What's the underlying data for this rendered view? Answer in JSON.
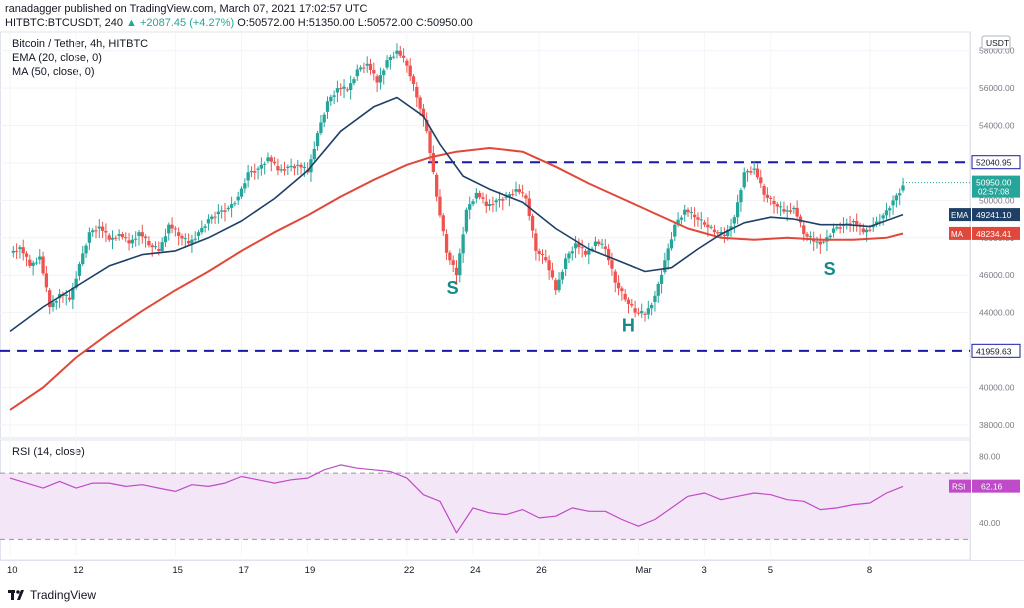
{
  "header": {
    "author": "ranadagger",
    "published": "published on TradingView.com, March 07, 2021 17:02:57 UTC",
    "symbol_line": "HITBTC:BTCUSDT, 240",
    "change": "▲ +2087.45 (+4.27%)",
    "ohlc": "O:50572.00 H:51350.00 L:50572.00 C:50950.00"
  },
  "legend": {
    "title": "Bitcoin / Tether, 4h, HITBTC",
    "ema": "EMA (20, close, 0)",
    "ma": "MA (50, close, 0)",
    "rsi": "RSI (14, close)"
  },
  "footer": {
    "brand": "TradingView"
  },
  "colors": {
    "up": "#26a69a",
    "down": "#ef5350",
    "ema": "#1e3f66",
    "ma": "#e0483c",
    "rsi": "#c04bc8",
    "support": "#1a1aa6",
    "pattern": "#138a8a"
  },
  "chart_data": {
    "type": "candlestick",
    "currency_badge": "USDT",
    "price_axis": {
      "min": 37000,
      "max": 59000,
      "ticks": [
        "38000.00",
        "40000.00",
        "42000.00",
        "44000.00",
        "46000.00",
        "48000.00",
        "50000.00",
        "52000.00",
        "54000.00",
        "56000.00",
        "58000.00"
      ]
    },
    "time_axis": {
      "ticks": [
        "10",
        "12",
        "15",
        "17",
        "19",
        "22",
        "24",
        "26",
        "Mar",
        "3",
        "5",
        "8"
      ]
    },
    "last_price": "50950.00",
    "countdown": "02:57:08",
    "ema20_value": "49241.10",
    "ma50_value": "48234.41",
    "ema_label": "EMA",
    "ma_label": "MA",
    "horizontal_levels": [
      {
        "value": 52040.95,
        "label": "52040.95"
      },
      {
        "value": 41959.63,
        "label": "41959.63"
      }
    ],
    "pattern_labels": [
      {
        "text": "S",
        "day": 23.2,
        "price": 45000
      },
      {
        "text": "H",
        "day": 28.5,
        "price": 43000
      },
      {
        "text": "S",
        "day": 34.6,
        "price": 46000
      }
    ],
    "close_path": [
      [
        10.0,
        47200
      ],
      [
        10.3,
        47500
      ],
      [
        10.6,
        46500
      ],
      [
        10.9,
        47000
      ],
      [
        11.2,
        44300
      ],
      [
        11.5,
        45000
      ],
      [
        11.8,
        44700
      ],
      [
        12.1,
        46600
      ],
      [
        12.4,
        48300
      ],
      [
        12.7,
        48600
      ],
      [
        13.0,
        47900
      ],
      [
        13.3,
        48200
      ],
      [
        13.6,
        47700
      ],
      [
        13.9,
        48300
      ],
      [
        14.2,
        47600
      ],
      [
        14.5,
        47300
      ],
      [
        14.8,
        48700
      ],
      [
        15.1,
        48100
      ],
      [
        15.4,
        47700
      ],
      [
        15.7,
        48300
      ],
      [
        16.0,
        49000
      ],
      [
        16.3,
        49400
      ],
      [
        16.6,
        49600
      ],
      [
        16.9,
        50200
      ],
      [
        17.2,
        51500
      ],
      [
        17.5,
        51700
      ],
      [
        17.8,
        52300
      ],
      [
        18.1,
        51600
      ],
      [
        18.4,
        51800
      ],
      [
        18.7,
        51900
      ],
      [
        19.0,
        51500
      ],
      [
        19.3,
        53600
      ],
      [
        19.6,
        55300
      ],
      [
        19.9,
        56000
      ],
      [
        20.2,
        55900
      ],
      [
        20.5,
        57000
      ],
      [
        20.8,
        57300
      ],
      [
        21.1,
        56300
      ],
      [
        21.4,
        57500
      ],
      [
        21.7,
        58000
      ],
      [
        22.0,
        57200
      ],
      [
        22.3,
        55500
      ],
      [
        22.6,
        53700
      ],
      [
        22.9,
        50200
      ],
      [
        23.2,
        47200
      ],
      [
        23.5,
        46000
      ],
      [
        23.8,
        49500
      ],
      [
        24.1,
        50400
      ],
      [
        24.4,
        49700
      ],
      [
        24.7,
        50000
      ],
      [
        25.0,
        50200
      ],
      [
        25.3,
        50600
      ],
      [
        25.6,
        50100
      ],
      [
        25.9,
        47300
      ],
      [
        26.2,
        46800
      ],
      [
        26.5,
        45200
      ],
      [
        26.8,
        46900
      ],
      [
        27.1,
        47700
      ],
      [
        27.4,
        47100
      ],
      [
        27.7,
        47800
      ],
      [
        28.0,
        47400
      ],
      [
        28.3,
        45600
      ],
      [
        28.6,
        44700
      ],
      [
        28.9,
        44000
      ],
      [
        29.2,
        43900
      ],
      [
        29.5,
        44900
      ],
      [
        29.8,
        46800
      ],
      [
        30.1,
        48700
      ],
      [
        30.4,
        49500
      ],
      [
        30.7,
        49100
      ],
      [
        31.0,
        48700
      ],
      [
        31.3,
        48300
      ],
      [
        31.6,
        48100
      ],
      [
        31.9,
        49100
      ],
      [
        32.2,
        51500
      ],
      [
        32.5,
        51700
      ],
      [
        32.8,
        50300
      ],
      [
        33.1,
        49800
      ],
      [
        33.4,
        49400
      ],
      [
        33.7,
        49600
      ],
      [
        34.0,
        48200
      ],
      [
        34.3,
        47800
      ],
      [
        34.6,
        47800
      ],
      [
        34.9,
        48500
      ],
      [
        35.2,
        48700
      ],
      [
        35.5,
        48900
      ],
      [
        35.8,
        48300
      ],
      [
        36.1,
        48700
      ],
      [
        36.4,
        49200
      ],
      [
        36.7,
        50000
      ],
      [
        37.0,
        50800
      ]
    ],
    "ema20_path": [
      [
        10.0,
        43000
      ],
      [
        11.0,
        44300
      ],
      [
        12.0,
        45400
      ],
      [
        13.0,
        46500
      ],
      [
        14.0,
        47100
      ],
      [
        15.0,
        47300
      ],
      [
        16.0,
        48000
      ],
      [
        17.0,
        48900
      ],
      [
        18.0,
        50100
      ],
      [
        19.0,
        51600
      ],
      [
        20.0,
        53700
      ],
      [
        21.0,
        55000
      ],
      [
        21.7,
        55500
      ],
      [
        22.5,
        54500
      ],
      [
        23.0,
        53000
      ],
      [
        23.7,
        51300
      ],
      [
        24.5,
        50600
      ],
      [
        25.5,
        49900
      ],
      [
        26.5,
        48500
      ],
      [
        27.5,
        47400
      ],
      [
        28.5,
        46700
      ],
      [
        29.2,
        46200
      ],
      [
        30.0,
        46400
      ],
      [
        30.8,
        47400
      ],
      [
        31.5,
        48200
      ],
      [
        32.2,
        48800
      ],
      [
        33.0,
        49100
      ],
      [
        33.7,
        49000
      ],
      [
        34.5,
        48700
      ],
      [
        35.3,
        48700
      ],
      [
        36.0,
        48600
      ],
      [
        37.0,
        49240
      ]
    ],
    "ma50_path": [
      [
        10.0,
        38800
      ],
      [
        11.0,
        40000
      ],
      [
        12.0,
        41600
      ],
      [
        13.0,
        42900
      ],
      [
        14.0,
        44100
      ],
      [
        15.0,
        45200
      ],
      [
        16.0,
        46200
      ],
      [
        17.0,
        47300
      ],
      [
        18.0,
        48300
      ],
      [
        19.0,
        49200
      ],
      [
        20.0,
        50200
      ],
      [
        21.0,
        51100
      ],
      [
        22.0,
        51900
      ],
      [
        22.7,
        52300
      ],
      [
        23.5,
        52600
      ],
      [
        24.5,
        52800
      ],
      [
        25.5,
        52600
      ],
      [
        26.5,
        51800
      ],
      [
        27.5,
        50900
      ],
      [
        28.5,
        50100
      ],
      [
        29.5,
        49300
      ],
      [
        30.5,
        48500
      ],
      [
        31.5,
        48000
      ],
      [
        32.5,
        47900
      ],
      [
        33.5,
        48000
      ],
      [
        34.5,
        47900
      ],
      [
        35.5,
        47900
      ],
      [
        36.5,
        48000
      ],
      [
        37.0,
        48230
      ]
    ],
    "rsi": {
      "axis_ticks": [
        "80.00",
        "40.00"
      ],
      "upper_band": 70,
      "lower_band": 30,
      "value_label": "RSI",
      "value": "62.16",
      "path": [
        [
          10.0,
          67
        ],
        [
          10.5,
          64
        ],
        [
          11.0,
          61
        ],
        [
          11.5,
          65
        ],
        [
          12.0,
          61
        ],
        [
          12.5,
          64
        ],
        [
          13.0,
          64
        ],
        [
          13.5,
          62
        ],
        [
          14.0,
          63
        ],
        [
          14.5,
          61
        ],
        [
          15.0,
          59
        ],
        [
          15.5,
          63
        ],
        [
          16.0,
          62
        ],
        [
          16.5,
          64
        ],
        [
          17.0,
          68
        ],
        [
          17.5,
          66
        ],
        [
          18.0,
          64
        ],
        [
          18.5,
          66
        ],
        [
          19.0,
          67
        ],
        [
          19.5,
          72
        ],
        [
          20.0,
          75
        ],
        [
          20.5,
          73
        ],
        [
          21.0,
          72
        ],
        [
          21.5,
          71
        ],
        [
          22.0,
          67
        ],
        [
          22.5,
          57
        ],
        [
          23.0,
          53
        ],
        [
          23.5,
          34
        ],
        [
          24.0,
          49
        ],
        [
          24.5,
          46
        ],
        [
          25.0,
          45
        ],
        [
          25.5,
          48
        ],
        [
          26.0,
          43
        ],
        [
          26.5,
          44
        ],
        [
          27.0,
          49
        ],
        [
          27.5,
          47
        ],
        [
          28.0,
          47
        ],
        [
          28.5,
          42
        ],
        [
          29.0,
          38
        ],
        [
          29.5,
          42
        ],
        [
          30.0,
          49
        ],
        [
          30.5,
          56
        ],
        [
          31.0,
          58
        ],
        [
          31.5,
          54
        ],
        [
          32.0,
          56
        ],
        [
          32.5,
          58
        ],
        [
          33.0,
          57
        ],
        [
          33.5,
          54
        ],
        [
          34.0,
          53
        ],
        [
          34.5,
          48
        ],
        [
          35.0,
          49
        ],
        [
          35.5,
          51
        ],
        [
          36.0,
          52
        ],
        [
          36.5,
          58
        ],
        [
          37.0,
          62
        ]
      ]
    }
  }
}
